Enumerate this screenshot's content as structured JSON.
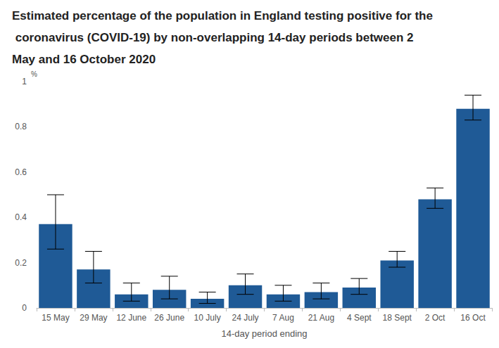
{
  "chart_data": {
    "type": "bar",
    "title": "Estimated percentage of the population in England testing positive for the coronavirus (COVID-19) by non-overlapping 14-day periods between 2 May and 16 October 2020",
    "xlabel": "14-day period ending",
    "ylabel": "%",
    "categories": [
      "15 May",
      "29 May",
      "12 June",
      "26 June",
      "10 July",
      "24 July",
      "7 Aug",
      "21 Aug",
      "4 Sept",
      "18 Sept",
      "2 Oct",
      "16 Oct"
    ],
    "values": [
      0.37,
      0.17,
      0.06,
      0.08,
      0.04,
      0.1,
      0.06,
      0.07,
      0.09,
      0.21,
      0.48,
      0.88
    ],
    "lower": [
      0.26,
      0.11,
      0.03,
      0.04,
      0.02,
      0.06,
      0.03,
      0.04,
      0.06,
      0.18,
      0.44,
      0.83
    ],
    "upper": [
      0.5,
      0.25,
      0.11,
      0.14,
      0.07,
      0.15,
      0.1,
      0.11,
      0.13,
      0.25,
      0.53,
      0.94
    ],
    "color": "#1f5a96",
    "ylim": [
      0,
      1
    ],
    "yticks": [
      0,
      0.2,
      0.4,
      0.6,
      0.8,
      1
    ],
    "grid": false
  }
}
